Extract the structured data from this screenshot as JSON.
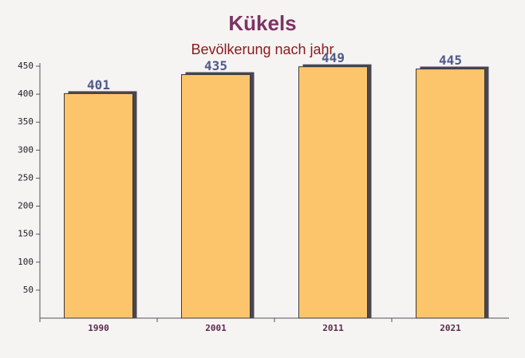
{
  "chart_data": {
    "type": "bar",
    "title": "Kükels",
    "subtitle": "Bevölkerung nach jahr",
    "categories": [
      "1990",
      "2001",
      "2011",
      "2021"
    ],
    "values": [
      401,
      435,
      449,
      445
    ],
    "color": "#fdc56b",
    "ylim": [
      0,
      450
    ],
    "yticks": [
      50,
      100,
      150,
      200,
      250,
      300,
      350,
      400,
      450
    ]
  }
}
